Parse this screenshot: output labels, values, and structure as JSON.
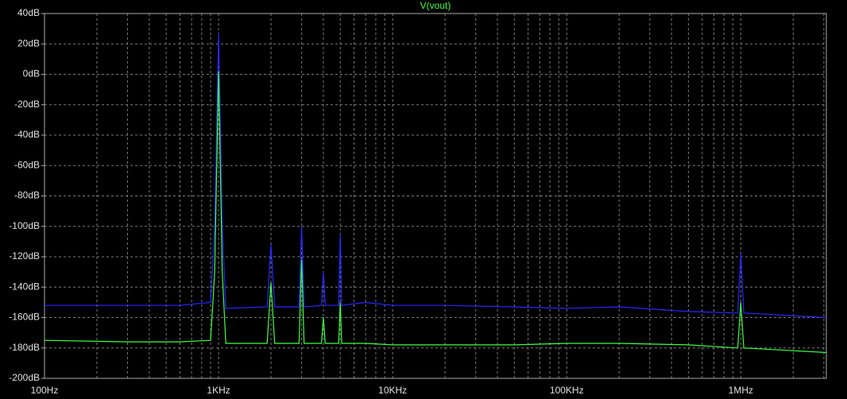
{
  "chart_data": {
    "type": "line",
    "title": "V(vout)",
    "title_color": "#40ff40",
    "xscale": "log",
    "grid": true,
    "x": [
      100,
      300,
      600,
      900,
      950,
      1000,
      1050,
      1100,
      1900,
      2000,
      2100,
      2900,
      3000,
      3100,
      3900,
      4000,
      4100,
      4900,
      5000,
      5100,
      7000,
      10000,
      20000,
      50000,
      100000,
      200000,
      500000,
      960000,
      1000000,
      1040000,
      1500000,
      3100000
    ],
    "series": [
      {
        "color": "#2828ff",
        "values": [
          -152,
          -152,
          -152,
          -150,
          -100,
          27,
          -100,
          -154,
          -153,
          -112,
          -153,
          -153,
          -100,
          -153,
          -152,
          -130,
          -152,
          -152,
          -105,
          -152,
          -150,
          -152,
          -152,
          -153,
          -154,
          -153,
          -156,
          -157,
          -118,
          -157,
          -158,
          -160
        ]
      },
      {
        "color": "#40ff40",
        "values": [
          -175,
          -176,
          -176,
          -175,
          -130,
          2,
          -130,
          -177,
          -177,
          -137,
          -177,
          -177,
          -122,
          -177,
          -177,
          -160,
          -177,
          -177,
          -150,
          -177,
          -177,
          -178,
          -178,
          -178,
          -177,
          -177,
          -178,
          -180,
          -150,
          -180,
          -181,
          -183
        ]
      }
    ],
    "xlim": [
      100,
      3100000
    ],
    "xticks": [
      {
        "value": 100,
        "label": "100Hz"
      },
      {
        "value": 1000,
        "label": "1KHz"
      },
      {
        "value": 10000,
        "label": "10KHz"
      },
      {
        "value": 100000,
        "label": "100KHz"
      },
      {
        "value": 1000000,
        "label": "1MHz"
      }
    ],
    "xminorticks": [
      200,
      300,
      400,
      500,
      600,
      700,
      800,
      900,
      2000,
      3000,
      4000,
      5000,
      6000,
      7000,
      8000,
      9000,
      20000,
      30000,
      40000,
      50000,
      60000,
      70000,
      80000,
      90000,
      200000,
      300000,
      400000,
      500000,
      600000,
      700000,
      800000,
      900000,
      2000000,
      3000000
    ],
    "ylim": [
      -200,
      40
    ],
    "yticks": [
      {
        "value": 40,
        "label": "40dB"
      },
      {
        "value": 20,
        "label": "20dB"
      },
      {
        "value": 0,
        "label": "0dB"
      },
      {
        "value": -20,
        "label": "-20dB"
      },
      {
        "value": -40,
        "label": "-40dB"
      },
      {
        "value": -60,
        "label": "-60dB"
      },
      {
        "value": -80,
        "label": "-80dB"
      },
      {
        "value": -100,
        "label": "-100dB"
      },
      {
        "value": -120,
        "label": "-120dB"
      },
      {
        "value": -140,
        "label": "-140dB"
      },
      {
        "value": -160,
        "label": "-160dB"
      },
      {
        "value": -180,
        "label": "-180dB"
      },
      {
        "value": -200,
        "label": "-200dB"
      }
    ]
  }
}
